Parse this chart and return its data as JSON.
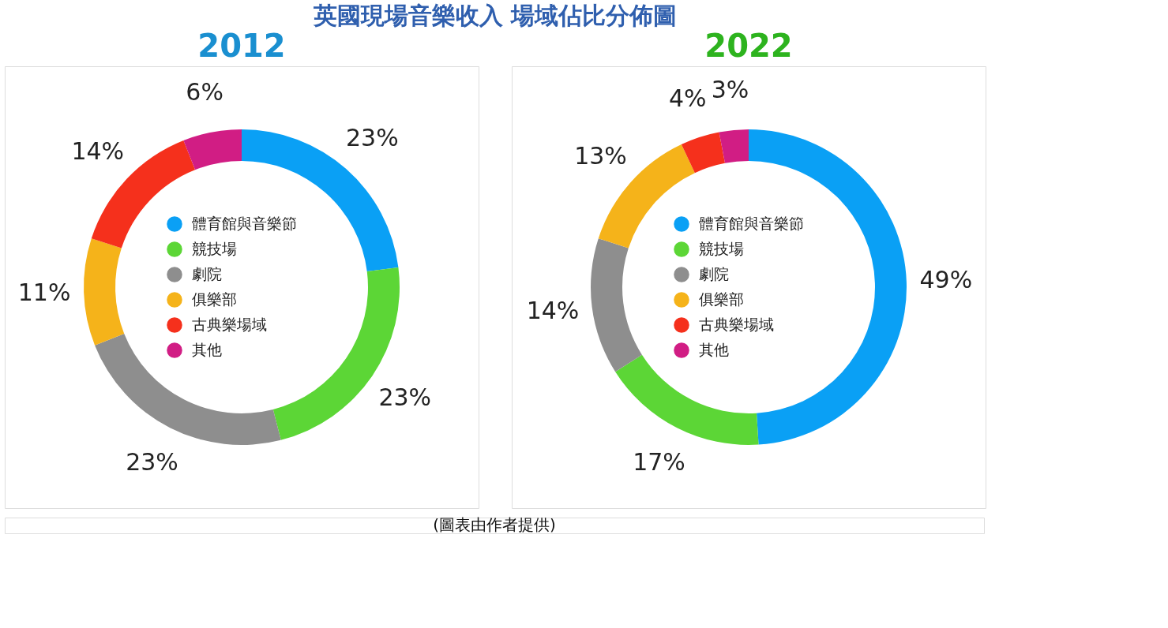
{
  "chart_data": [
    {
      "type": "donut",
      "title": "英國現場音樂收入  場域佔比分佈圖",
      "subtitle": "2012",
      "categories": [
        "體育館與音樂節",
        "競技場",
        "劇院",
        "俱樂部",
        "古典樂場域",
        "其他"
      ],
      "values": [
        23,
        23,
        23,
        11,
        14,
        6
      ],
      "value_labels": [
        "23%",
        "23%",
        "23%",
        "11%",
        "14%",
        "6%"
      ],
      "colors": [
        "#0aa0f5",
        "#5cd636",
        "#8e8e8e",
        "#f5b31a",
        "#f5301c",
        "#d11d84"
      ],
      "legend": "center"
    },
    {
      "type": "donut",
      "subtitle": "2022",
      "categories": [
        "體育館與音樂節",
        "競技場",
        "劇院",
        "俱樂部",
        "古典樂場域",
        "其他"
      ],
      "values": [
        49,
        17,
        14,
        13,
        4,
        3
      ],
      "value_labels": [
        "49%",
        "17%",
        "14%",
        "13%",
        "4%",
        "3%"
      ],
      "colors": [
        "#0aa0f5",
        "#5cd636",
        "#8e8e8e",
        "#f5b31a",
        "#f5301c",
        "#d11d84"
      ],
      "legend": "center",
      "annotations": [
        "(圖表由作者提供)"
      ]
    }
  ]
}
